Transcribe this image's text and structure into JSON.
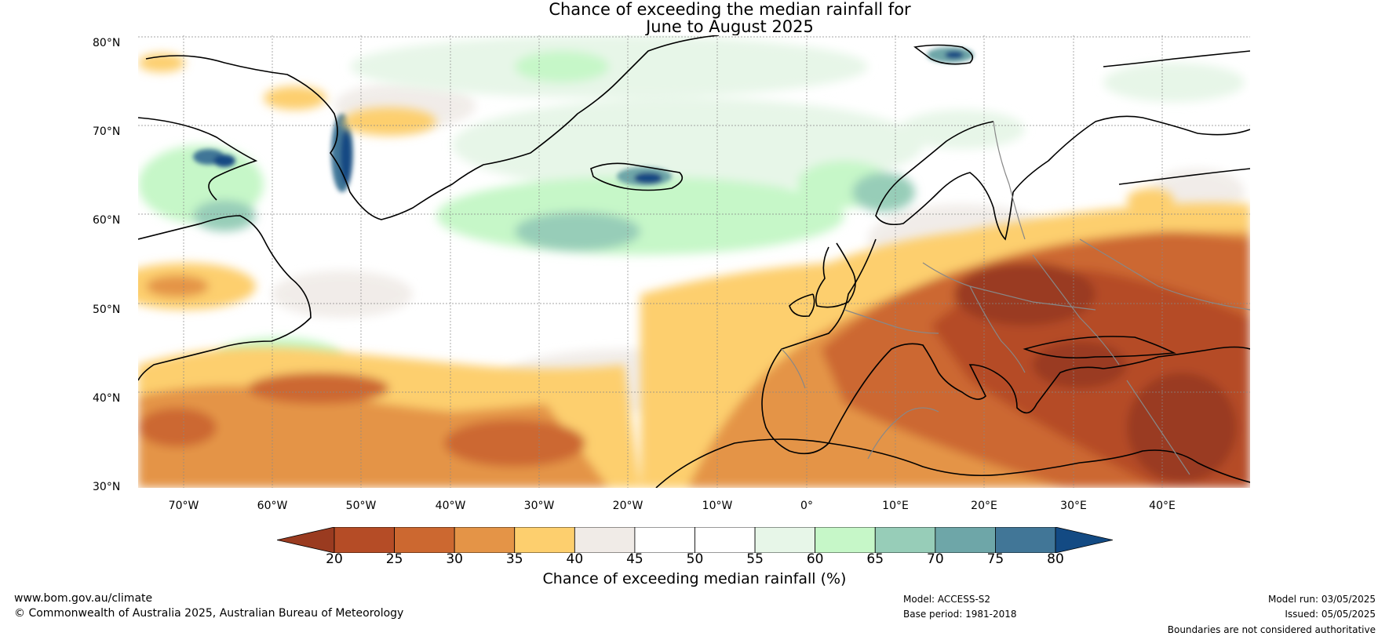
{
  "title_line1": "Chance of exceeding the median rainfall for",
  "title_line2": "June to August 2025",
  "lat_labels": [
    "80°N",
    "70°N",
    "60°N",
    "50°N",
    "40°N",
    "30°N"
  ],
  "lon_labels": [
    "70°W",
    "60°W",
    "50°W",
    "40°W",
    "30°W",
    "20°W",
    "10°W",
    "0°",
    "10°E",
    "20°E",
    "30°E",
    "40°E"
  ],
  "colorbar": {
    "ticks": [
      "20",
      "25",
      "30",
      "35",
      "40",
      "45",
      "50",
      "55",
      "60",
      "65",
      "70",
      "75",
      "80"
    ],
    "colors": [
      "#9a3b20",
      "#b54c26",
      "#cc6830",
      "#e49447",
      "#fdcf6e",
      "#f0ebe7",
      "#ffffff",
      "#ffffff",
      "#e7f6e8",
      "#c6f7c8",
      "#97cdb8",
      "#6ea6a8",
      "#417697",
      "#134a83"
    ],
    "label": "Chance of exceeding median rainfall (%)"
  },
  "footer": {
    "website": "www.bom.gov.au/climate",
    "copyright": "© Commonwealth of Australia 2025, Australian Bureau of Meteorology",
    "model": "Model: ACCESS-S2",
    "base_period": "Base period: 1981-2018",
    "model_run": "Model run: 03/05/2025",
    "issued": "Issued: 05/05/2025",
    "disclaimer": "Boundaries are not considered authoritative"
  }
}
